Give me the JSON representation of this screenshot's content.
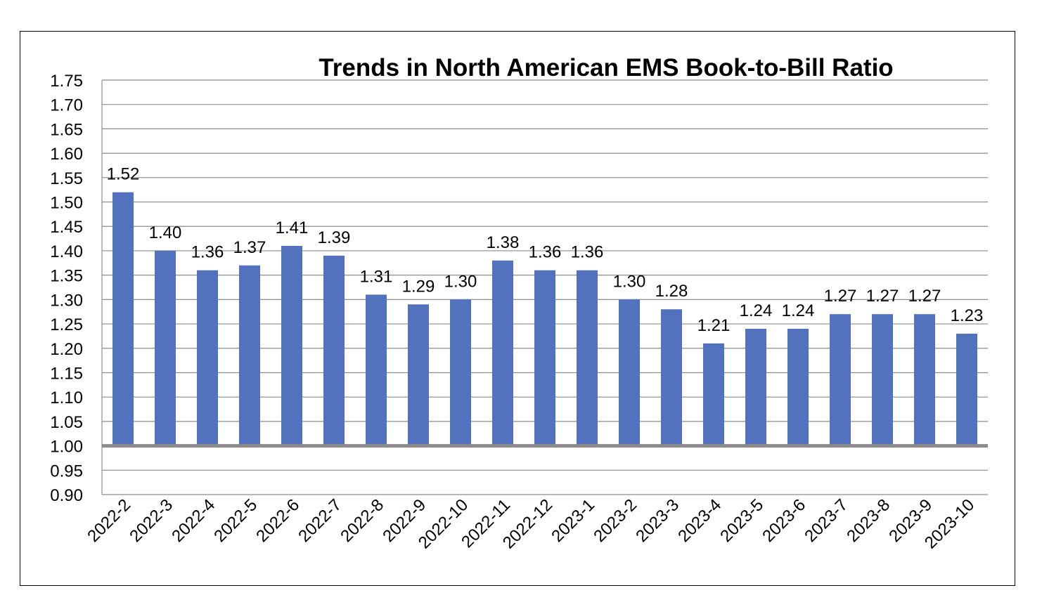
{
  "chart_data": {
    "type": "bar",
    "title": "Trends in North American EMS Book-to-Bill Ratio",
    "xlabel": "",
    "ylabel": "",
    "ylim": [
      0.9,
      1.75
    ],
    "ytick_step": 0.05,
    "baseline": 1.0,
    "grid": true,
    "legend": "none",
    "bar_color": "#5272BD",
    "grid_color": "#8C8C8C",
    "baseline_color": "#8C8C8C",
    "categories": [
      "2022-2",
      "2022-3",
      "2022-4",
      "2022-5",
      "2022-6",
      "2022-7",
      "2022-8",
      "2022-9",
      "2022-10",
      "2022-11",
      "2022-12",
      "2023-1",
      "2023-2",
      "2023-3",
      "2023-4",
      "2023-5",
      "2023-6",
      "2023-7",
      "2023-8",
      "2023-9",
      "2023-10"
    ],
    "values": [
      1.52,
      1.4,
      1.36,
      1.37,
      1.41,
      1.39,
      1.31,
      1.29,
      1.3,
      1.38,
      1.36,
      1.36,
      1.3,
      1.28,
      1.21,
      1.24,
      1.24,
      1.27,
      1.27,
      1.27,
      1.23
    ],
    "data_labels": [
      "1.52",
      "1.40",
      "1.36",
      "1.37",
      "1.41",
      "1.39",
      "1.31",
      "1.29",
      "1.30",
      "1.38",
      "1.36",
      "1.36",
      "1.30",
      "1.28",
      "1.21",
      "1.24",
      "1.24",
      "1.27",
      "1.27",
      "1.27",
      "1.23"
    ],
    "ytick_labels": [
      "0.90",
      "0.95",
      "1.00",
      "1.05",
      "1.10",
      "1.15",
      "1.20",
      "1.25",
      "1.30",
      "1.35",
      "1.40",
      "1.45",
      "1.50",
      "1.55",
      "1.60",
      "1.65",
      "1.70",
      "1.75"
    ]
  }
}
